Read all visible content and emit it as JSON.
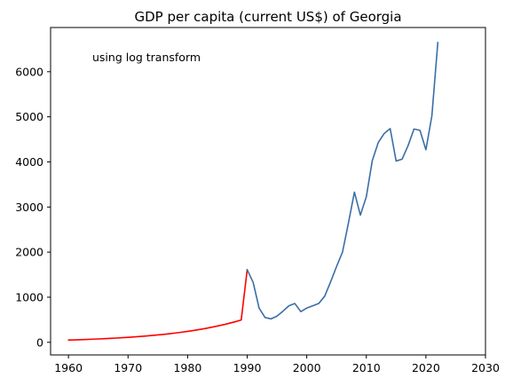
{
  "chart_data": {
    "type": "line",
    "title": "GDP per capita (current US$) of Georgia",
    "xlabel": "",
    "ylabel": "",
    "annotation": "using log transform",
    "xlim": [
      1957,
      2030
    ],
    "ylim": [
      -280,
      6980
    ],
    "x_ticks": [
      1960,
      1970,
      1980,
      1990,
      2000,
      2010,
      2020,
      2030
    ],
    "y_ticks": [
      0,
      1000,
      2000,
      3000,
      4000,
      5000,
      6000
    ],
    "grid": false,
    "series": [
      {
        "color": "#ff0000",
        "x": [
          1960,
          1961,
          1962,
          1963,
          1964,
          1965,
          1966,
          1967,
          1968,
          1969,
          1970,
          1971,
          1972,
          1973,
          1974,
          1975,
          1976,
          1977,
          1978,
          1979,
          1980,
          1981,
          1982,
          1983,
          1984,
          1985,
          1986,
          1987,
          1988,
          1989,
          1990
        ],
        "y": [
          50,
          54,
          59,
          64,
          69,
          74,
          80,
          87,
          94,
          102,
          110,
          119,
          129,
          139,
          151,
          163,
          177,
          191,
          207,
          224,
          242,
          262,
          284,
          307,
          333,
          360,
          390,
          422,
          457,
          495,
          1610
        ]
      },
      {
        "color": "#3a6ea5",
        "x": [
          1990,
          1991,
          1992,
          1993,
          1994,
          1995,
          1996,
          1997,
          1998,
          1999,
          2000,
          2001,
          2002,
          2003,
          2004,
          2005,
          2006,
          2007,
          2008,
          2009,
          2010,
          2011,
          2012,
          2013,
          2014,
          2015,
          2016,
          2017,
          2018,
          2019,
          2020,
          2021,
          2022
        ],
        "y": [
          1610,
          1330,
          760,
          550,
          520,
          580,
          690,
          810,
          860,
          680,
          760,
          810,
          860,
          1020,
          1340,
          1680,
          2000,
          2650,
          3330,
          2820,
          3230,
          4030,
          4430,
          4630,
          4740,
          4020,
          4060,
          4360,
          4730,
          4700,
          4270,
          5020,
          6650
        ]
      }
    ]
  }
}
